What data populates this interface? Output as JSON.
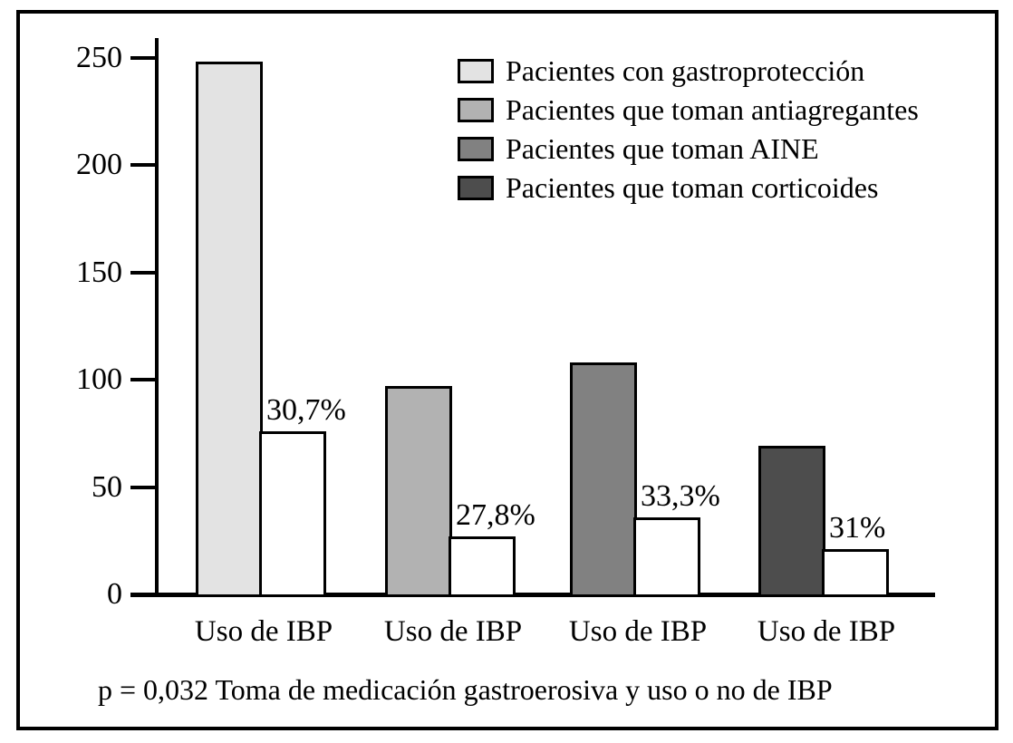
{
  "chart_data": {
    "type": "bar",
    "title": "",
    "xlabel": "",
    "ylabel": "",
    "y_ticks": [
      0,
      50,
      100,
      150,
      200,
      250
    ],
    "ylim": [
      0,
      260
    ],
    "grid": false,
    "legend_position": "top-right",
    "categories": [
      "Uso de IBP",
      "Uso de IBP",
      "Uso de IBP",
      "Uso de IBP"
    ],
    "series": [
      {
        "name": "Pacientes con gastroprotección",
        "color": "#e3e3e3",
        "total_patients": 248,
        "ibp_use": 76,
        "ibp_pct_label": "30,7%"
      },
      {
        "name": "Pacientes que toman antiagregantes",
        "color": "#b2b2b2",
        "total_patients": 97,
        "ibp_use": 27,
        "ibp_pct_label": "27,8%"
      },
      {
        "name": "Pacientes que toman AINE",
        "color": "#818181",
        "total_patients": 108,
        "ibp_use": 36,
        "ibp_pct_label": "33,3%"
      },
      {
        "name": "Pacientes que toman corticoides",
        "color": "#4d4d4d",
        "total_patients": 69,
        "ibp_use": 21,
        "ibp_pct_label": "31%"
      }
    ],
    "ibp_bar_color": "#ffffff",
    "caption": "p = 0,032 Toma de medicación gastroerosiva y uso o no de IBP"
  }
}
